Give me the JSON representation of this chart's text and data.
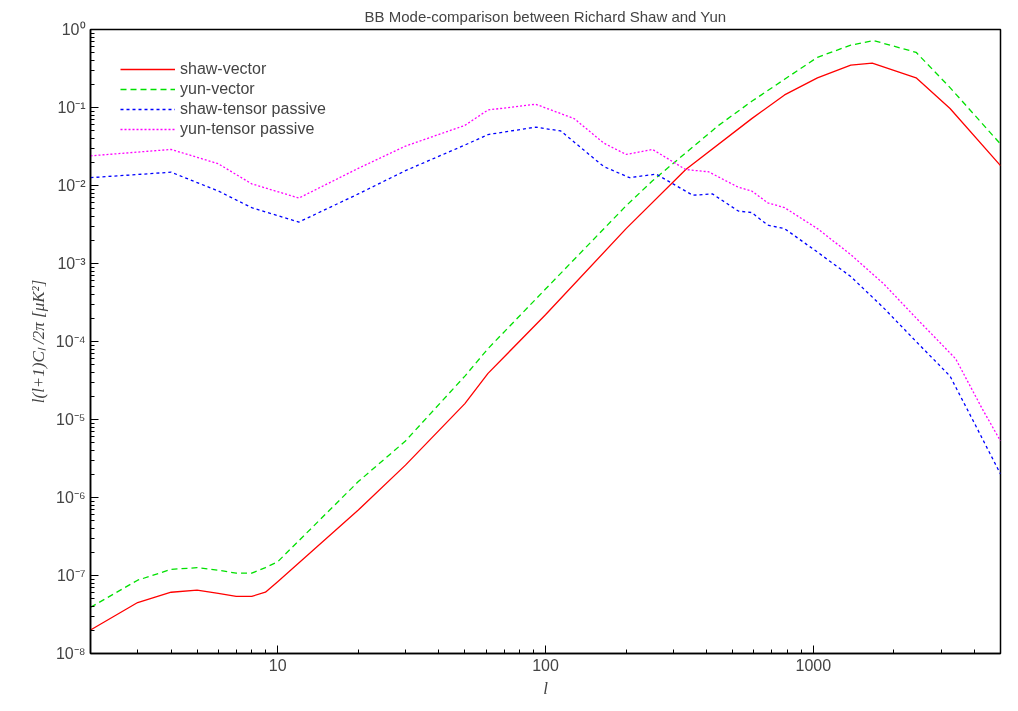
{
  "chart_data": {
    "type": "line",
    "title": "BB Mode-comparison between Richard Shaw and Yun",
    "xlabel": "l",
    "ylabel": "l(l+1)Cₗ /2π [μK²]",
    "log": "xy",
    "grid": false,
    "legend": "top left",
    "marker": "none",
    "xlim": [
      2,
      5000
    ],
    "ylim": [
      1e-08,
      1
    ],
    "xticks": [
      10,
      100,
      1000
    ],
    "yticks": [
      {
        "value": 1e-08,
        "label": "10⁻⁸"
      },
      {
        "value": 1e-07,
        "label": "10⁻⁷"
      },
      {
        "value": 1e-06,
        "label": "10⁻⁶"
      },
      {
        "value": 1e-05,
        "label": "10⁻⁵"
      },
      {
        "value": 0.0001,
        "label": "10⁻⁴"
      },
      {
        "value": 0.001,
        "label": "10⁻³"
      },
      {
        "value": 0.01,
        "label": "10⁻²"
      },
      {
        "value": 0.1,
        "label": "10⁻¹"
      },
      {
        "value": 1,
        "label": "10⁰"
      }
    ],
    "series": [
      {
        "name": "shaw-vector",
        "color": "#ff0000",
        "line_style": "solid",
        "x": [
          2,
          3,
          4,
          5,
          6,
          7,
          8,
          9,
          10,
          20,
          30,
          50,
          61,
          100,
          200,
          334,
          589,
          781,
          1036,
          1380,
          1660,
          2420,
          3240,
          5000
        ],
        "values": [
          2e-08,
          4.5e-08,
          6.1e-08,
          6.5e-08,
          5.9e-08,
          5.4e-08,
          5.4e-08,
          6.1e-08,
          8.3e-08,
          6.9e-07,
          2.6e-06,
          1.6e-05,
          3.9e-05,
          0.00022,
          0.0028,
          0.016,
          0.072,
          0.145,
          0.24,
          0.35,
          0.37,
          0.24,
          0.097,
          0.018
        ]
      },
      {
        "name": "yun-vector",
        "color": "#00e000",
        "line_style": "dashed",
        "x": [
          2,
          3,
          4,
          5,
          6,
          7,
          8,
          9,
          10,
          20,
          30,
          50,
          61,
          100,
          200,
          251,
          443,
          589,
          781,
          1036,
          1380,
          1680,
          2420,
          3240,
          5000
        ],
        "values": [
          3.9e-08,
          8.7e-08,
          1.2e-07,
          1.26e-07,
          1.17e-07,
          1.07e-07,
          1.07e-07,
          1.26e-07,
          1.5e-07,
          1.6e-06,
          5.3e-06,
          3.6e-05,
          8.1e-05,
          0.00047,
          0.0055,
          0.0115,
          0.059,
          0.12,
          0.23,
          0.44,
          0.63,
          0.72,
          0.51,
          0.18,
          0.034
        ]
      },
      {
        "name": "shaw-tensor passive",
        "color": "#0000ff",
        "line_style": "dashed",
        "x": [
          2,
          4,
          6,
          8,
          12,
          20,
          30,
          50,
          61,
          92,
          114,
          165,
          206,
          259,
          355,
          420,
          525,
          589,
          676,
          781,
          1036,
          1380,
          1830,
          2420,
          3240,
          4000,
          5000
        ],
        "values": [
          0.0126,
          0.0148,
          0.0085,
          0.0052,
          0.0034,
          0.0078,
          0.0155,
          0.033,
          0.045,
          0.056,
          0.05,
          0.0175,
          0.0126,
          0.014,
          0.0075,
          0.0078,
          0.0047,
          0.0045,
          0.0031,
          0.0028,
          0.0014,
          0.00068,
          0.00027,
          0.0001,
          3.6e-05,
          8.9e-06,
          2e-06
        ]
      },
      {
        "name": "yun-tensor passive",
        "color": "#ff00ff",
        "line_style": "dotted",
        "x": [
          2,
          4,
          6,
          8,
          12,
          20,
          30,
          50,
          61,
          92,
          128,
          165,
          200,
          251,
          334,
          406,
          525,
          589,
          676,
          781,
          1036,
          1380,
          1830,
          2420,
          3400,
          4260,
          5000
        ],
        "values": [
          0.024,
          0.029,
          0.019,
          0.0105,
          0.0069,
          0.0166,
          0.032,
          0.059,
          0.093,
          0.11,
          0.072,
          0.035,
          0.025,
          0.029,
          0.016,
          0.015,
          0.0095,
          0.0085,
          0.006,
          0.0052,
          0.0028,
          0.0013,
          0.00055,
          0.0002,
          6e-05,
          1.4e-05,
          5.3e-06
        ]
      }
    ]
  }
}
